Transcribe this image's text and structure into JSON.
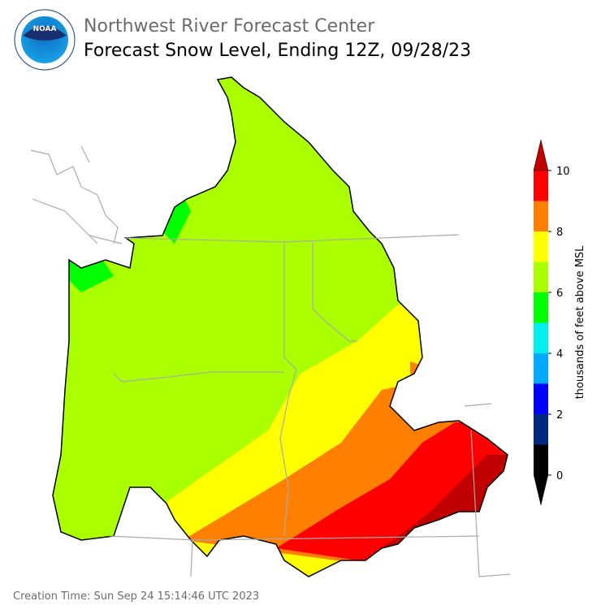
{
  "header": {
    "organization": "Northwest River Forecast Center",
    "title": "Forecast Snow Level, Ending 12Z, 09/28/23"
  },
  "colorbar": {
    "label": "thousands of feet above MSL",
    "ticks": [
      0,
      2,
      4,
      6,
      8,
      10
    ],
    "colors": [
      "#000000",
      "#00287f",
      "#0000ff",
      "#00aaff",
      "#00eeee",
      "#00ff00",
      "#aaff00",
      "#ffff00",
      "#ff8000",
      "#ff0000"
    ],
    "under_color": "#000000",
    "over_color": "#c00000"
  },
  "footer": {
    "creation_time": "Creation Time: Sun Sep 24 15:14:46 UTC 2023"
  }
}
